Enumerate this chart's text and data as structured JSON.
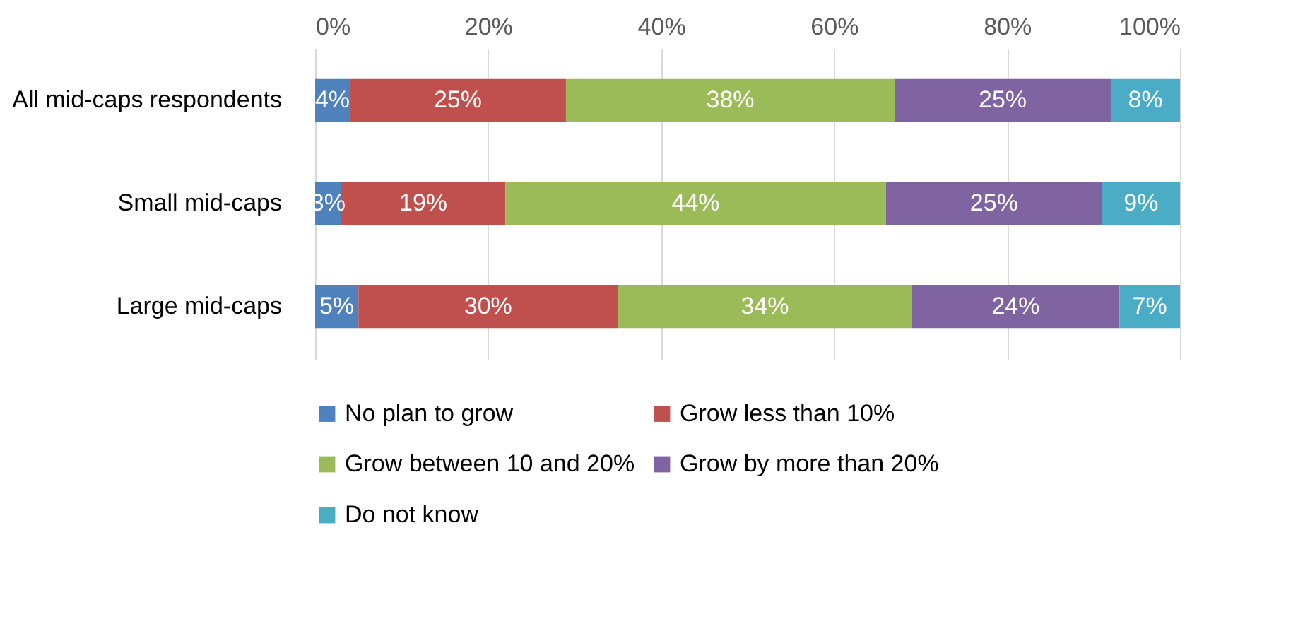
{
  "chart_data": {
    "type": "bar",
    "orientation": "horizontal",
    "stacked": true,
    "categories": [
      "All mid-caps respondents",
      "Small mid-caps",
      "Large mid-caps"
    ],
    "series": [
      {
        "name": "No plan to grow",
        "color": "#4f81bd",
        "values": [
          4,
          3,
          5
        ],
        "value_labels": [
          "4%",
          "3%",
          "5%"
        ]
      },
      {
        "name": "Grow less than 10%",
        "color": "#c0504d",
        "values": [
          25,
          19,
          30
        ],
        "value_labels": [
          "25%",
          "19%",
          "30%"
        ]
      },
      {
        "name": "Grow between 10 and 20%",
        "color": "#9bbb59",
        "values": [
          38,
          44,
          34
        ],
        "value_labels": [
          "38%",
          "44%",
          "34%"
        ]
      },
      {
        "name": "Grow by more than 20%",
        "color": "#8064a2",
        "values": [
          25,
          25,
          24
        ],
        "value_labels": [
          "25%",
          "25%",
          "24%"
        ]
      },
      {
        "name": "Do not know",
        "color": "#4bacc6",
        "values": [
          8,
          9,
          7
        ],
        "value_labels": [
          "8%",
          "9%",
          "7%"
        ]
      }
    ],
    "xlim": [
      0,
      100
    ],
    "xticks": [
      {
        "value": 0,
        "label": "0%"
      },
      {
        "value": 20,
        "label": "20%"
      },
      {
        "value": 40,
        "label": "40%"
      },
      {
        "value": 60,
        "label": "60%"
      },
      {
        "value": 80,
        "label": "80%"
      },
      {
        "value": 100,
        "label": "100%"
      }
    ],
    "grid": "x",
    "legend": "bottom"
  }
}
